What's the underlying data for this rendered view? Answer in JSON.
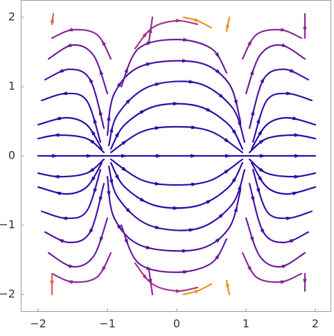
{
  "chart_data": {
    "type": "stream",
    "xlim": [
      -2.25,
      2.23
    ],
    "ylim": [
      -2.25,
      2.25
    ],
    "xticks": [
      {
        "value": -2,
        "label": "−2"
      },
      {
        "value": -1,
        "label": "−1"
      },
      0,
      1,
      2
    ],
    "yticks": [
      {
        "value": -2,
        "label": "−2"
      },
      {
        "value": -1,
        "label": "−1"
      },
      0,
      1,
      2
    ],
    "series": [
      {
        "color": "#2b0ca8",
        "x": [
          -2,
          -1,
          0,
          1,
          2
        ],
        "y": [
          0,
          0,
          0,
          0,
          0
        ]
      },
      {
        "color": "#2b0ca8",
        "x": [
          -0.95,
          -0.5,
          0,
          0.5,
          0.95
        ],
        "y": [
          0.05,
          0.35,
          0.42,
          0.35,
          0.05
        ]
      },
      {
        "color": "#2b0ca8",
        "x": [
          -0.95,
          -0.75,
          -0.3,
          0.3,
          0.75,
          0.95
        ],
        "y": [
          0.1,
          0.45,
          0.72,
          0.72,
          0.45,
          0.1
        ]
      },
      {
        "color": "#3a0fa6",
        "x": [
          -0.98,
          -0.85,
          -0.4,
          0.3,
          0.8,
          0.98
        ],
        "y": [
          0.15,
          0.6,
          1.0,
          1.05,
          0.7,
          0.2
        ]
      },
      {
        "color": "#4a14a2",
        "x": [
          -1,
          -0.9,
          -0.5,
          0.3,
          0.75,
          0.92
        ],
        "y": [
          0.3,
          0.9,
          1.3,
          1.35,
          1.05,
          0.5
        ]
      },
      {
        "color": "#6a1f9c",
        "x": [
          -0.8,
          -0.55,
          0,
          0.5,
          0.72
        ],
        "y": [
          1.0,
          1.55,
          1.68,
          1.55,
          1.2
        ]
      },
      {
        "color": "#a8348a",
        "x": [
          -0.6,
          -0.35,
          0,
          0.3
        ],
        "y": [
          1.55,
          1.85,
          1.95,
          1.9
        ]
      },
      {
        "color": "#2b0ca8",
        "x": [
          -1.05,
          -1.3,
          -1.7,
          -2.0
        ],
        "y": [
          0.05,
          0.25,
          0.3,
          0.25
        ]
      },
      {
        "color": "#2b0ca8",
        "x": [
          -1.08,
          -1.3,
          -1.6,
          -2.0
        ],
        "y": [
          0.1,
          0.45,
          0.55,
          0.45
        ]
      },
      {
        "color": "#3a0fa6",
        "x": [
          -1.1,
          -1.3,
          -1.6,
          -1.95
        ],
        "y": [
          0.2,
          0.8,
          0.9,
          0.8
        ]
      },
      {
        "color": "#4a14a2",
        "x": [
          -1.05,
          -1.25,
          -1.55,
          -1.9
        ],
        "y": [
          0.4,
          1.1,
          1.25,
          1.1
        ]
      },
      {
        "color": "#6a1f9c",
        "x": [
          -1.0,
          -1.2,
          -1.5,
          -1.85
        ],
        "y": [
          0.9,
          1.45,
          1.6,
          1.4
        ]
      },
      {
        "color": "#8a2a96",
        "x": [
          -0.95,
          -1.15,
          -1.5,
          -1.8
        ],
        "y": [
          1.4,
          1.75,
          1.82,
          1.7
        ]
      },
      {
        "color": "#2b0ca8",
        "x": [
          1.05,
          1.3,
          1.7,
          2.0
        ],
        "y": [
          0.05,
          0.25,
          0.3,
          0.25
        ]
      },
      {
        "color": "#2b0ca8",
        "x": [
          1.08,
          1.3,
          1.6,
          2.0
        ],
        "y": [
          0.1,
          0.45,
          0.55,
          0.45
        ]
      },
      {
        "color": "#3a0fa6",
        "x": [
          1.1,
          1.3,
          1.6,
          1.95
        ],
        "y": [
          0.2,
          0.8,
          0.9,
          0.8
        ]
      },
      {
        "color": "#4a14a2",
        "x": [
          1.05,
          1.25,
          1.55,
          1.9
        ],
        "y": [
          0.4,
          1.1,
          1.25,
          1.1
        ]
      },
      {
        "color": "#6a1f9c",
        "x": [
          1.0,
          1.2,
          1.5,
          1.85
        ],
        "y": [
          0.9,
          1.45,
          1.6,
          1.4
        ]
      },
      {
        "color": "#8a2a96",
        "x": [
          0.95,
          1.15,
          1.5,
          1.8
        ],
        "y": [
          1.4,
          1.75,
          1.82,
          1.7
        ]
      },
      {
        "color": "#e0604a",
        "x": [
          -1.8,
          -1.78
        ],
        "y": [
          1.9,
          2.05
        ]
      },
      {
        "color": "#f09020",
        "x": [
          0.72,
          0.76
        ],
        "y": [
          1.8,
          2.0
        ]
      },
      {
        "color": "#8a2a96",
        "x": [
          -0.4,
          -0.35
        ],
        "y": [
          1.65,
          2.0
        ]
      },
      {
        "color": "#8a2a96",
        "x": [
          1.85,
          1.85
        ],
        "y": [
          1.7,
          2.05
        ]
      },
      {
        "color": "#f09020",
        "x": [
          0.1,
          0.3,
          0.5
        ],
        "y": [
          2.0,
          1.95,
          1.85
        ]
      },
      {
        "color": "#2b0ca8",
        "x": [
          -0.95,
          -0.5,
          0,
          0.5,
          0.95
        ],
        "y": [
          -0.05,
          -0.35,
          -0.42,
          -0.35,
          -0.05
        ]
      },
      {
        "color": "#2b0ca8",
        "x": [
          -0.95,
          -0.75,
          -0.3,
          0.3,
          0.75,
          0.95
        ],
        "y": [
          -0.1,
          -0.45,
          -0.72,
          -0.72,
          -0.45,
          -0.1
        ]
      },
      {
        "color": "#3a0fa6",
        "x": [
          -0.98,
          -0.85,
          -0.4,
          0.3,
          0.8,
          0.98
        ],
        "y": [
          -0.15,
          -0.6,
          -1.0,
          -1.05,
          -0.7,
          -0.2
        ]
      },
      {
        "color": "#4a14a2",
        "x": [
          -1,
          -0.9,
          -0.5,
          0.3,
          0.75,
          0.92
        ],
        "y": [
          -0.3,
          -0.9,
          -1.3,
          -1.35,
          -1.05,
          -0.5
        ]
      },
      {
        "color": "#6a1f9c",
        "x": [
          -0.8,
          -0.55,
          0,
          0.5,
          0.72
        ],
        "y": [
          -1.0,
          -1.55,
          -1.68,
          -1.55,
          -1.2
        ]
      },
      {
        "color": "#a8348a",
        "x": [
          -0.6,
          -0.35,
          0,
          0.3
        ],
        "y": [
          -1.55,
          -1.85,
          -1.95,
          -1.9
        ]
      },
      {
        "color": "#2b0ca8",
        "x": [
          -1.05,
          -1.3,
          -1.7,
          -2.0
        ],
        "y": [
          -0.05,
          -0.25,
          -0.3,
          -0.25
        ]
      },
      {
        "color": "#2b0ca8",
        "x": [
          -1.08,
          -1.3,
          -1.6,
          -2.0
        ],
        "y": [
          -0.1,
          -0.45,
          -0.55,
          -0.45
        ]
      },
      {
        "color": "#3a0fa6",
        "x": [
          -1.1,
          -1.3,
          -1.6,
          -1.95
        ],
        "y": [
          -0.2,
          -0.8,
          -0.9,
          -0.8
        ]
      },
      {
        "color": "#4a14a2",
        "x": [
          -1.05,
          -1.25,
          -1.55,
          -1.9
        ],
        "y": [
          -0.4,
          -1.1,
          -1.25,
          -1.1
        ]
      },
      {
        "color": "#6a1f9c",
        "x": [
          -1.0,
          -1.2,
          -1.5,
          -1.85
        ],
        "y": [
          -0.9,
          -1.45,
          -1.6,
          -1.4
        ]
      },
      {
        "color": "#8a2a96",
        "x": [
          -0.95,
          -1.15,
          -1.5,
          -1.8
        ],
        "y": [
          -1.4,
          -1.75,
          -1.82,
          -1.7
        ]
      },
      {
        "color": "#2b0ca8",
        "x": [
          1.05,
          1.3,
          1.7,
          2.0
        ],
        "y": [
          -0.05,
          -0.25,
          -0.3,
          -0.25
        ]
      },
      {
        "color": "#2b0ca8",
        "x": [
          1.08,
          1.3,
          1.6,
          2.0
        ],
        "y": [
          -0.1,
          -0.45,
          -0.55,
          -0.45
        ]
      },
      {
        "color": "#3a0fa6",
        "x": [
          1.1,
          1.3,
          1.6,
          1.95
        ],
        "y": [
          -0.2,
          -0.8,
          -0.9,
          -0.8
        ]
      },
      {
        "color": "#4a14a2",
        "x": [
          1.05,
          1.25,
          1.55,
          1.9
        ],
        "y": [
          -0.4,
          -1.1,
          -1.25,
          -1.1
        ]
      },
      {
        "color": "#6a1f9c",
        "x": [
          1.0,
          1.2,
          1.5,
          1.85
        ],
        "y": [
          -0.9,
          -1.45,
          -1.6,
          -1.4
        ]
      },
      {
        "color": "#8a2a96",
        "x": [
          0.95,
          1.15,
          1.5,
          1.8
        ],
        "y": [
          -1.4,
          -1.75,
          -1.82,
          -1.7
        ]
      },
      {
        "color": "#e0604a",
        "x": [
          -1.8,
          -1.8
        ],
        "y": [
          -1.7,
          -2.0
        ]
      },
      {
        "color": "#f09020",
        "x": [
          0.72,
          0.76
        ],
        "y": [
          -1.8,
          -2.0
        ]
      },
      {
        "color": "#8a2a96",
        "x": [
          -0.4,
          -0.35
        ],
        "y": [
          -1.65,
          -2.0
        ]
      },
      {
        "color": "#8a2a96",
        "x": [
          1.85,
          1.85
        ],
        "y": [
          -1.7,
          -1.95
        ]
      },
      {
        "color": "#f09020",
        "x": [
          0.1,
          0.3,
          0.5
        ],
        "y": [
          -2.0,
          -1.95,
          -1.85
        ]
      }
    ]
  }
}
